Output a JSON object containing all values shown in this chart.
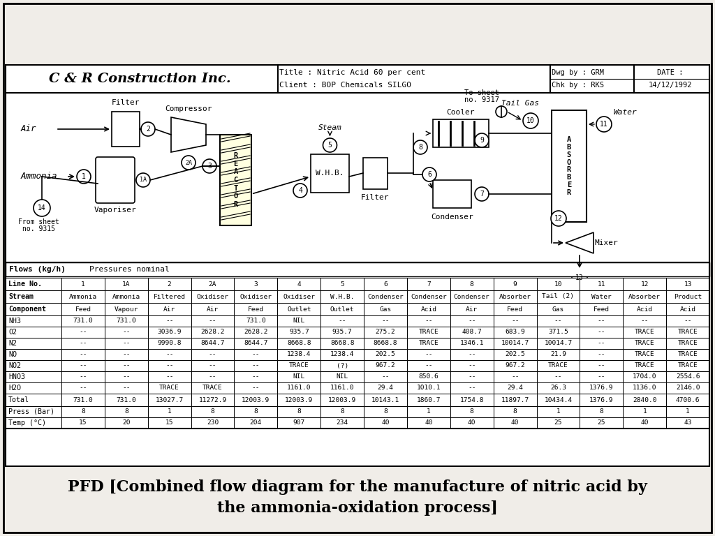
{
  "title_company": "C & R Construction Inc.",
  "title_line1": "Title : Nitric Acid 60 per cent",
  "title_line2": "Client : BOP Chemicals SILGO",
  "dwg_by": "Dwg by : GRM",
  "chk_by": "Chk by : RKS",
  "date_label": "DATE :",
  "date_value": "14/12/1992",
  "flows_label": "Flows (kg/h)",
  "pressures_label": "Pressures nominal",
  "caption": "PFD [Combined flow diagram for the manufacture of nitric acid by\nthe ammonia-oxidation process]",
  "table_headers": [
    "Line No.",
    "Stream",
    "Component",
    "NH3",
    "O2",
    "N2",
    "NO",
    "NO2",
    "HNO3",
    "H2O",
    "Total",
    "Press (Bar)",
    "Temp (°C)"
  ],
  "col_headers_line": [
    "1",
    "1A",
    "2",
    "2A",
    "3",
    "4",
    "5",
    "6",
    "7",
    "8",
    "9",
    "10",
    "11",
    "12",
    "13"
  ],
  "stream_names": [
    "Ammonia",
    "Ammonia",
    "Filtered",
    "Oxidiser",
    "Oxidiser",
    "Oxidiser",
    "W.H.B.",
    "Condenser",
    "Condenser",
    "Condenser",
    "Absorber",
    "Tail (2)",
    "Water",
    "Absorber",
    "Product"
  ],
  "component_names": [
    "Feed",
    "Vapour",
    "Air",
    "Air",
    "Feed",
    "Outlet",
    "Outlet",
    "Gas",
    "Acid",
    "Air",
    "Feed",
    "Gas",
    "Feed",
    "Acid",
    "Acid"
  ],
  "data": {
    "NH3": [
      "731.0",
      "731.0",
      "--",
      "--",
      "731.0",
      "NIL",
      "--",
      "--",
      "--",
      "--",
      "--",
      "--",
      "--",
      "--",
      "--"
    ],
    "O2": [
      "--",
      "--",
      "3036.9",
      "2628.2",
      "2628.2",
      "935.7",
      "935.7",
      "275.2",
      "TRACE",
      "408.7",
      "683.9",
      "371.5",
      "--",
      "TRACE",
      "TRACE"
    ],
    "N2": [
      "--",
      "--",
      "9990.8",
      "8644.7",
      "8644.7",
      "8668.8",
      "8668.8",
      "8668.8",
      "TRACE",
      "1346.1",
      "10014.7",
      "10014.7",
      "--",
      "TRACE",
      "TRACE"
    ],
    "NO": [
      "--",
      "--",
      "--",
      "--",
      "--",
      "1238.4",
      "1238.4",
      "202.5",
      "--",
      "--",
      "202.5",
      "21.9",
      "--",
      "TRACE",
      "TRACE"
    ],
    "NO2": [
      "--",
      "--",
      "--",
      "--",
      "--",
      "TRACE",
      "(?)",
      "967.2",
      "--",
      "--",
      "967.2",
      "TRACE",
      "--",
      "TRACE",
      "TRACE"
    ],
    "HNO3": [
      "--",
      "--",
      "--",
      "--",
      "--",
      "NIL",
      "NIL",
      "--",
      "850.6",
      "--",
      "--",
      "--",
      "--",
      "1704.0",
      "2554.6"
    ],
    "H2O": [
      "--",
      "--",
      "TRACE",
      "TRACE",
      "--",
      "1161.0",
      "1161.0",
      "29.4",
      "1010.1",
      "--",
      "29.4",
      "26.3",
      "1376.9",
      "1136.0",
      "2146.0"
    ],
    "Total": [
      "731.0",
      "731.0",
      "13027.7",
      "11272.9",
      "12003.9",
      "12003.9",
      "12003.9",
      "10143.1",
      "1860.7",
      "1754.8",
      "11897.7",
      "10434.4",
      "1376.9",
      "2840.0",
      "4700.6"
    ],
    "Press": [
      "8",
      "8",
      "1",
      "8",
      "8",
      "8",
      "8",
      "8",
      "1",
      "8",
      "8",
      "1",
      "8",
      "1",
      "1"
    ],
    "Temp": [
      "15",
      "20",
      "15",
      "230",
      "204",
      "907",
      "234",
      "40",
      "40",
      "40",
      "40",
      "25",
      "25",
      "40",
      "43"
    ]
  },
  "bg_color": "#f5f5f0",
  "diagram_bg": "#ffffff"
}
